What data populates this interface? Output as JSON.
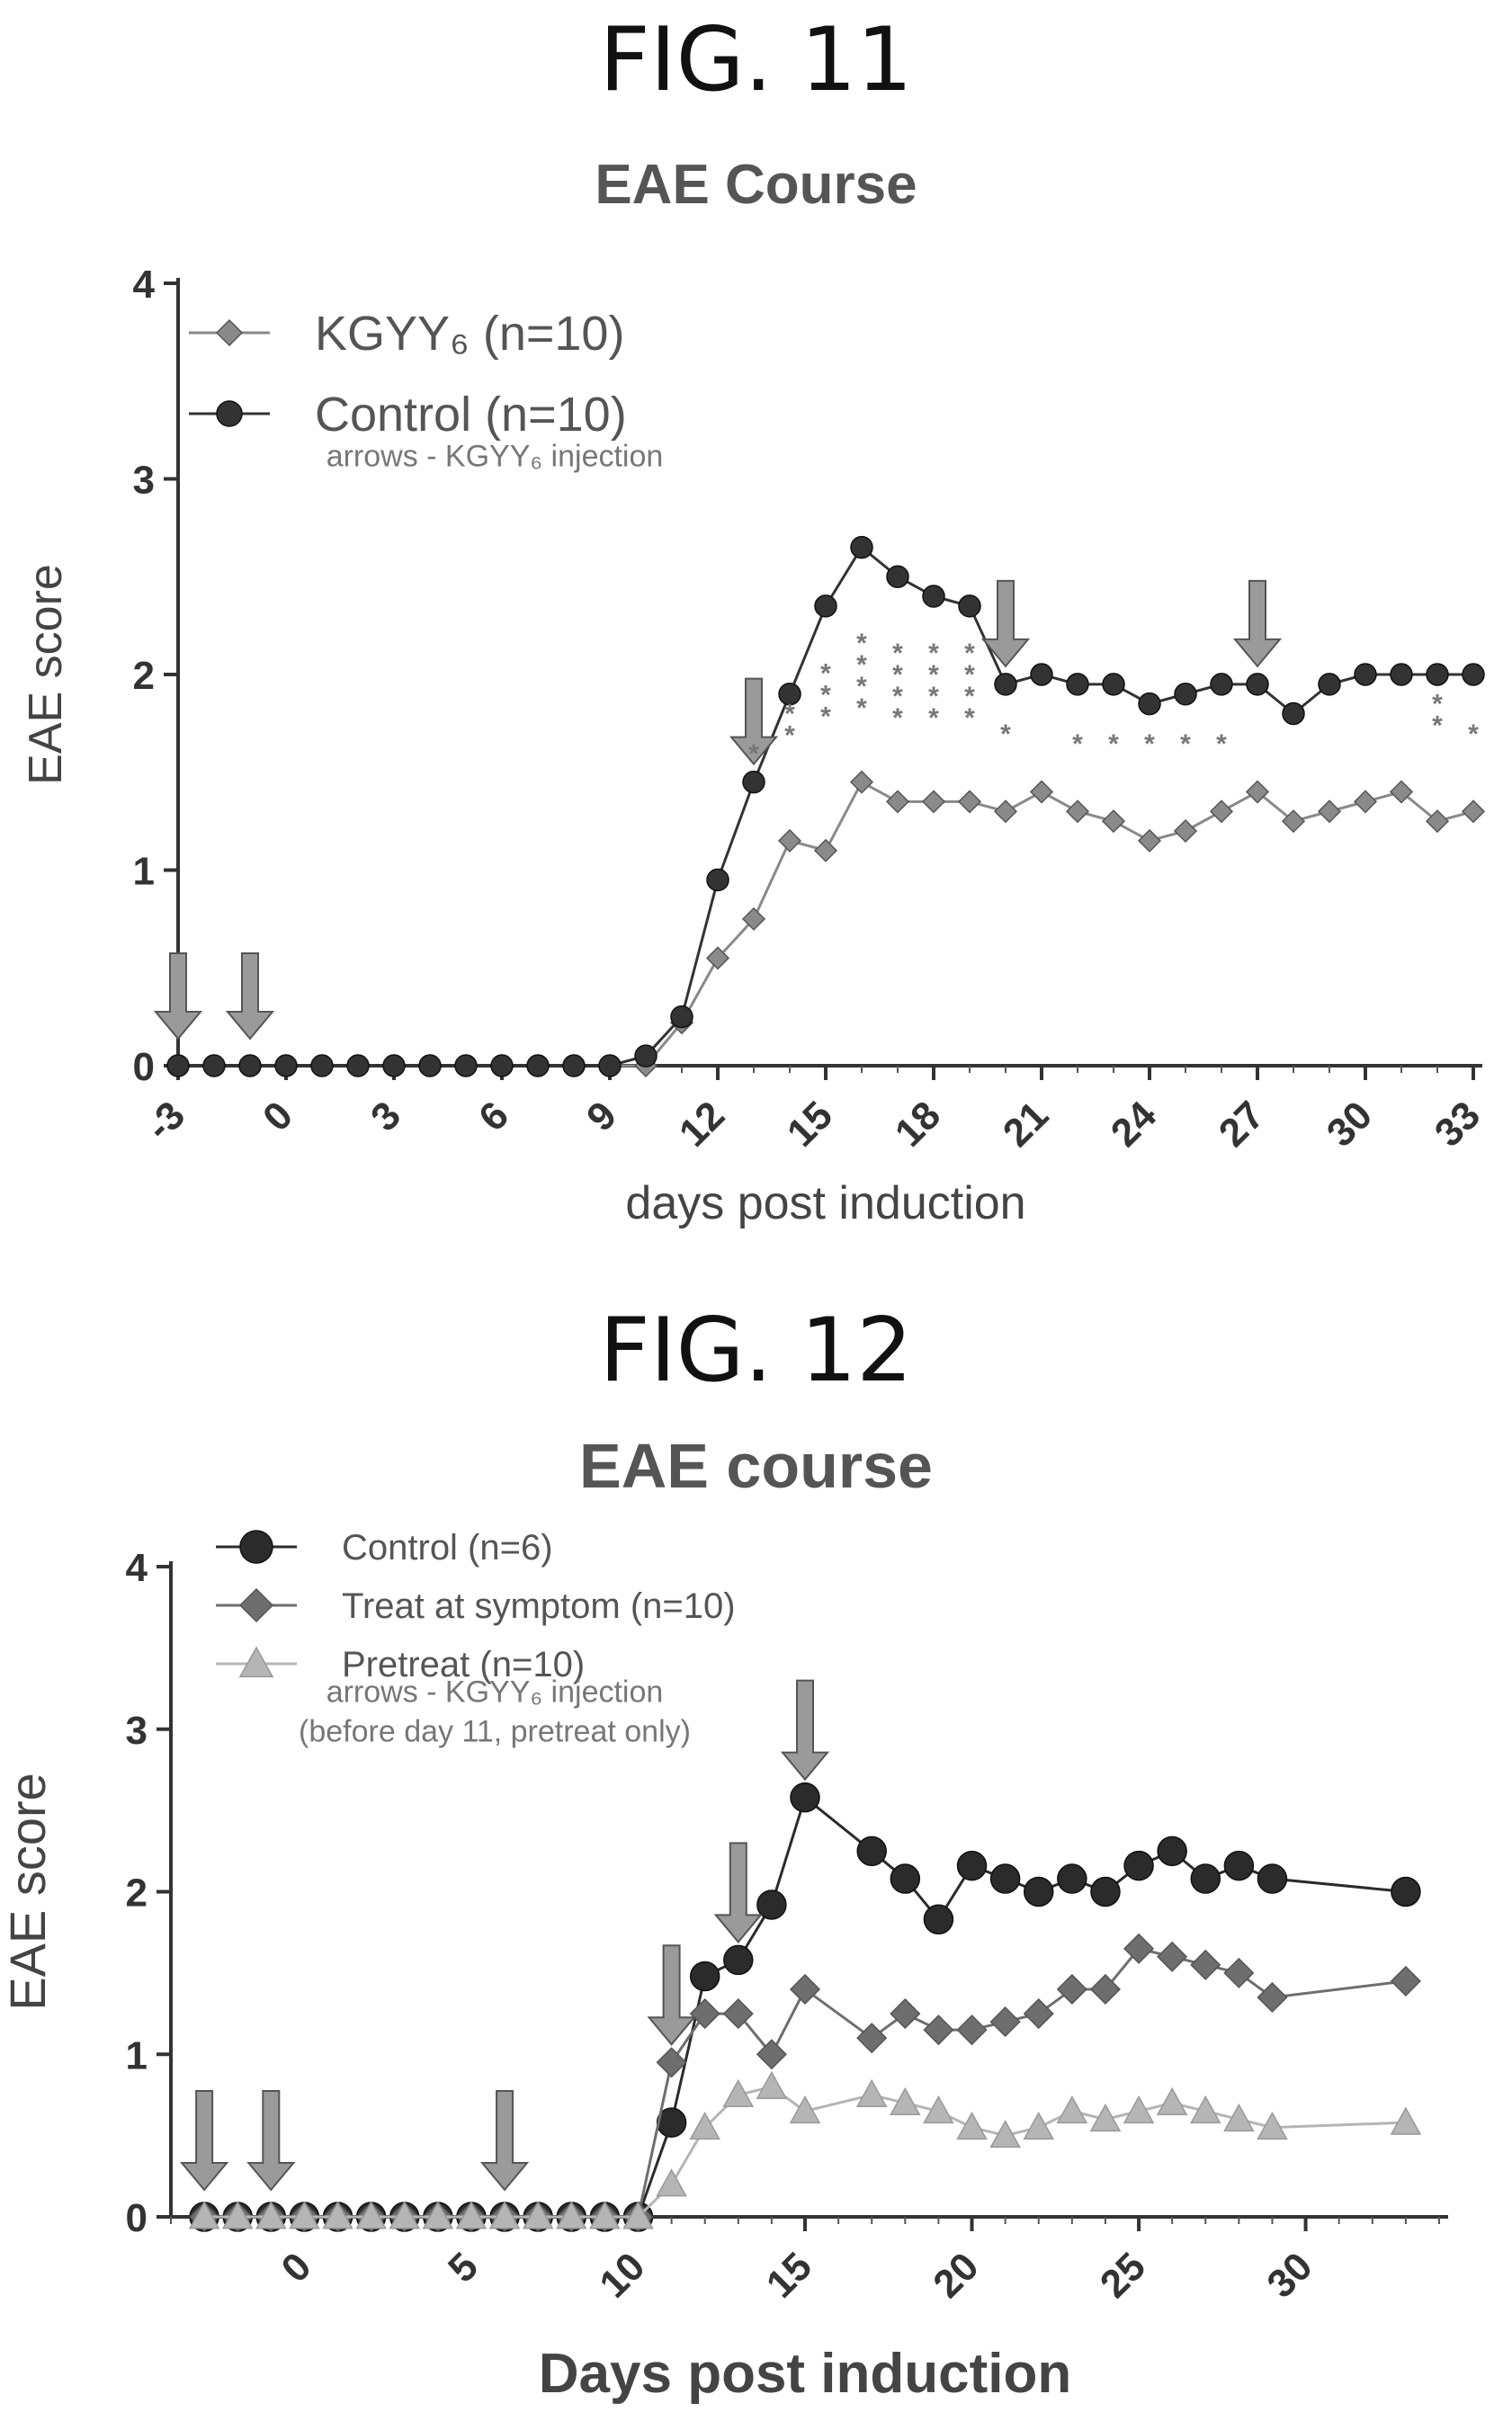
{
  "figures": [
    {
      "label": "FIG. 11"
    },
    {
      "label": "FIG. 12"
    }
  ],
  "chart_data": [
    {
      "type": "line",
      "title": "EAE Course",
      "xlabel": "days post induction",
      "ylabel": "EAE score",
      "xlim": [
        -3,
        33
      ],
      "ylim": [
        0,
        4
      ],
      "x_ticks": [
        -3,
        0,
        3,
        6,
        9,
        12,
        15,
        18,
        21,
        24,
        27,
        30,
        33
      ],
      "x_tick_labels": [
        "-3",
        "0",
        "3",
        "6",
        "9",
        "12",
        "15",
        "18",
        "21",
        "24",
        "27",
        "30",
        "33"
      ],
      "y_ticks": [
        0,
        1,
        2,
        3,
        4
      ],
      "y_tick_labels": [
        "0",
        "1",
        "2",
        "3",
        "4"
      ],
      "legend_position": "top-left",
      "note": "arrows - KGYY₆ injection",
      "series": [
        {
          "name": "KGYY₆ (n=10)",
          "color": "#8a8a8a",
          "marker": "diamond",
          "x": [
            -3,
            -2,
            -1,
            0,
            1,
            2,
            3,
            4,
            5,
            6,
            7,
            8,
            9,
            10,
            11,
            12,
            13,
            14,
            15,
            16,
            17,
            18,
            19,
            20,
            21,
            22,
            23,
            24,
            25,
            26,
            27,
            28,
            29,
            30,
            31,
            32,
            33
          ],
          "y": [
            0,
            0,
            0,
            0,
            0,
            0,
            0,
            0,
            0,
            0,
            0,
            0,
            0,
            0,
            0.22,
            0.55,
            0.75,
            1.15,
            1.1,
            1.45,
            1.35,
            1.35,
            1.35,
            1.3,
            1.4,
            1.3,
            1.25,
            1.15,
            1.2,
            1.3,
            1.4,
            1.25,
            1.3,
            1.35,
            1.4,
            1.25,
            1.3
          ]
        },
        {
          "name": "Control (n=10)",
          "color": "#333333",
          "marker": "circle",
          "x": [
            -3,
            -2,
            -1,
            0,
            1,
            2,
            3,
            4,
            5,
            6,
            7,
            8,
            9,
            10,
            11,
            12,
            13,
            14,
            15,
            16,
            17,
            18,
            19,
            20,
            21,
            22,
            23,
            24,
            25,
            26,
            27,
            28,
            29,
            30,
            31,
            32,
            33
          ],
          "y": [
            0,
            0,
            0,
            0,
            0,
            0,
            0,
            0,
            0,
            0,
            0,
            0,
            0,
            0.05,
            0.25,
            0.95,
            1.45,
            1.9,
            2.35,
            2.65,
            2.5,
            2.4,
            2.35,
            1.95,
            2.0,
            1.95,
            1.95,
            1.85,
            1.9,
            1.95,
            1.95,
            1.8,
            1.95,
            2.0,
            2.0,
            2.0,
            2.0
          ]
        }
      ],
      "injection_arrows_x": [
        -3,
        -1,
        13,
        20,
        27
      ],
      "significance_marks": [
        {
          "x": 13,
          "y": 1.55,
          "label": "*"
        },
        {
          "x": 14,
          "y": 1.7,
          "label": "**"
        },
        {
          "x": 15,
          "y": 1.85,
          "label": "***"
        },
        {
          "x": 16,
          "y": 1.95,
          "label": "****"
        },
        {
          "x": 17,
          "y": 1.9,
          "label": "****"
        },
        {
          "x": 18,
          "y": 1.9,
          "label": "****"
        },
        {
          "x": 19,
          "y": 1.9,
          "label": "****"
        },
        {
          "x": 20,
          "y": 1.65,
          "label": "*"
        },
        {
          "x": 22,
          "y": 1.6,
          "label": "*"
        },
        {
          "x": 23,
          "y": 1.6,
          "label": "*"
        },
        {
          "x": 24,
          "y": 1.6,
          "label": "*"
        },
        {
          "x": 25,
          "y": 1.6,
          "label": "*"
        },
        {
          "x": 26,
          "y": 1.6,
          "label": "*"
        },
        {
          "x": 32,
          "y": 1.75,
          "label": "**"
        },
        {
          "x": 33,
          "y": 1.65,
          "label": "*"
        }
      ]
    },
    {
      "type": "line",
      "title": "EAE course",
      "xlabel": "Days post induction",
      "ylabel": "EAE score",
      "xlim": [
        -4,
        34
      ],
      "ylim": [
        0,
        4
      ],
      "x_ticks": [
        0,
        5,
        10,
        15,
        20,
        25,
        30
      ],
      "x_tick_labels": [
        "0",
        "5",
        "10",
        "15",
        "20",
        "25",
        "30"
      ],
      "y_ticks": [
        0,
        1,
        2,
        3,
        4
      ],
      "y_tick_labels": [
        "0",
        "1",
        "2",
        "3",
        "4"
      ],
      "legend_position": "top-left",
      "note": "arrows - KGYY₆ injection",
      "note2": "(before day 11, pretreat only)",
      "series": [
        {
          "name": "Control (n=6)",
          "color": "#2b2b2b",
          "marker": "circle",
          "x": [
            -3,
            -2,
            -1,
            0,
            1,
            2,
            3,
            4,
            5,
            6,
            7,
            8,
            9,
            10,
            11,
            12,
            13,
            14,
            15,
            17,
            18,
            19,
            20,
            21,
            22,
            23,
            24,
            25,
            26,
            27,
            28,
            29,
            33
          ],
          "y": [
            0,
            0,
            0,
            0,
            0,
            0,
            0,
            0,
            0,
            0,
            0,
            0,
            0,
            0,
            0.58,
            1.48,
            1.58,
            1.92,
            2.58,
            2.25,
            2.08,
            1.83,
            2.16,
            2.08,
            2.0,
            2.08,
            2.0,
            2.16,
            2.25,
            2.08,
            2.16,
            2.08,
            2.0
          ]
        },
        {
          "name": "Treat at symptom (n=10)",
          "color": "#6e6e6e",
          "marker": "diamond",
          "x": [
            -3,
            -2,
            -1,
            0,
            1,
            2,
            3,
            4,
            5,
            6,
            7,
            8,
            9,
            10,
            11,
            12,
            13,
            14,
            15,
            17,
            18,
            19,
            20,
            21,
            22,
            23,
            24,
            25,
            26,
            27,
            28,
            29,
            33
          ],
          "y": [
            0,
            0,
            0,
            0,
            0,
            0,
            0,
            0,
            0,
            0,
            0,
            0,
            0,
            0,
            0.95,
            1.25,
            1.25,
            1.0,
            1.4,
            1.1,
            1.25,
            1.15,
            1.15,
            1.2,
            1.25,
            1.4,
            1.4,
            1.65,
            1.6,
            1.55,
            1.5,
            1.35,
            1.45
          ]
        },
        {
          "name": "Pretreat (n=10)",
          "color": "#b5b5b5",
          "marker": "triangle",
          "x": [
            -3,
            -2,
            -1,
            0,
            1,
            2,
            3,
            4,
            5,
            6,
            7,
            8,
            9,
            10,
            11,
            12,
            13,
            14,
            15,
            17,
            18,
            19,
            20,
            21,
            22,
            23,
            24,
            25,
            26,
            27,
            28,
            29,
            33
          ],
          "y": [
            0,
            0,
            0,
            0,
            0,
            0,
            0,
            0,
            0,
            0,
            0,
            0,
            0,
            0,
            0.2,
            0.55,
            0.75,
            0.8,
            0.65,
            0.75,
            0.7,
            0.65,
            0.55,
            0.5,
            0.55,
            0.65,
            0.6,
            0.65,
            0.7,
            0.65,
            0.6,
            0.55,
            0.58
          ]
        }
      ],
      "injection_arrows_x": [
        -3,
        -1,
        6,
        11,
        13,
        15
      ]
    }
  ]
}
